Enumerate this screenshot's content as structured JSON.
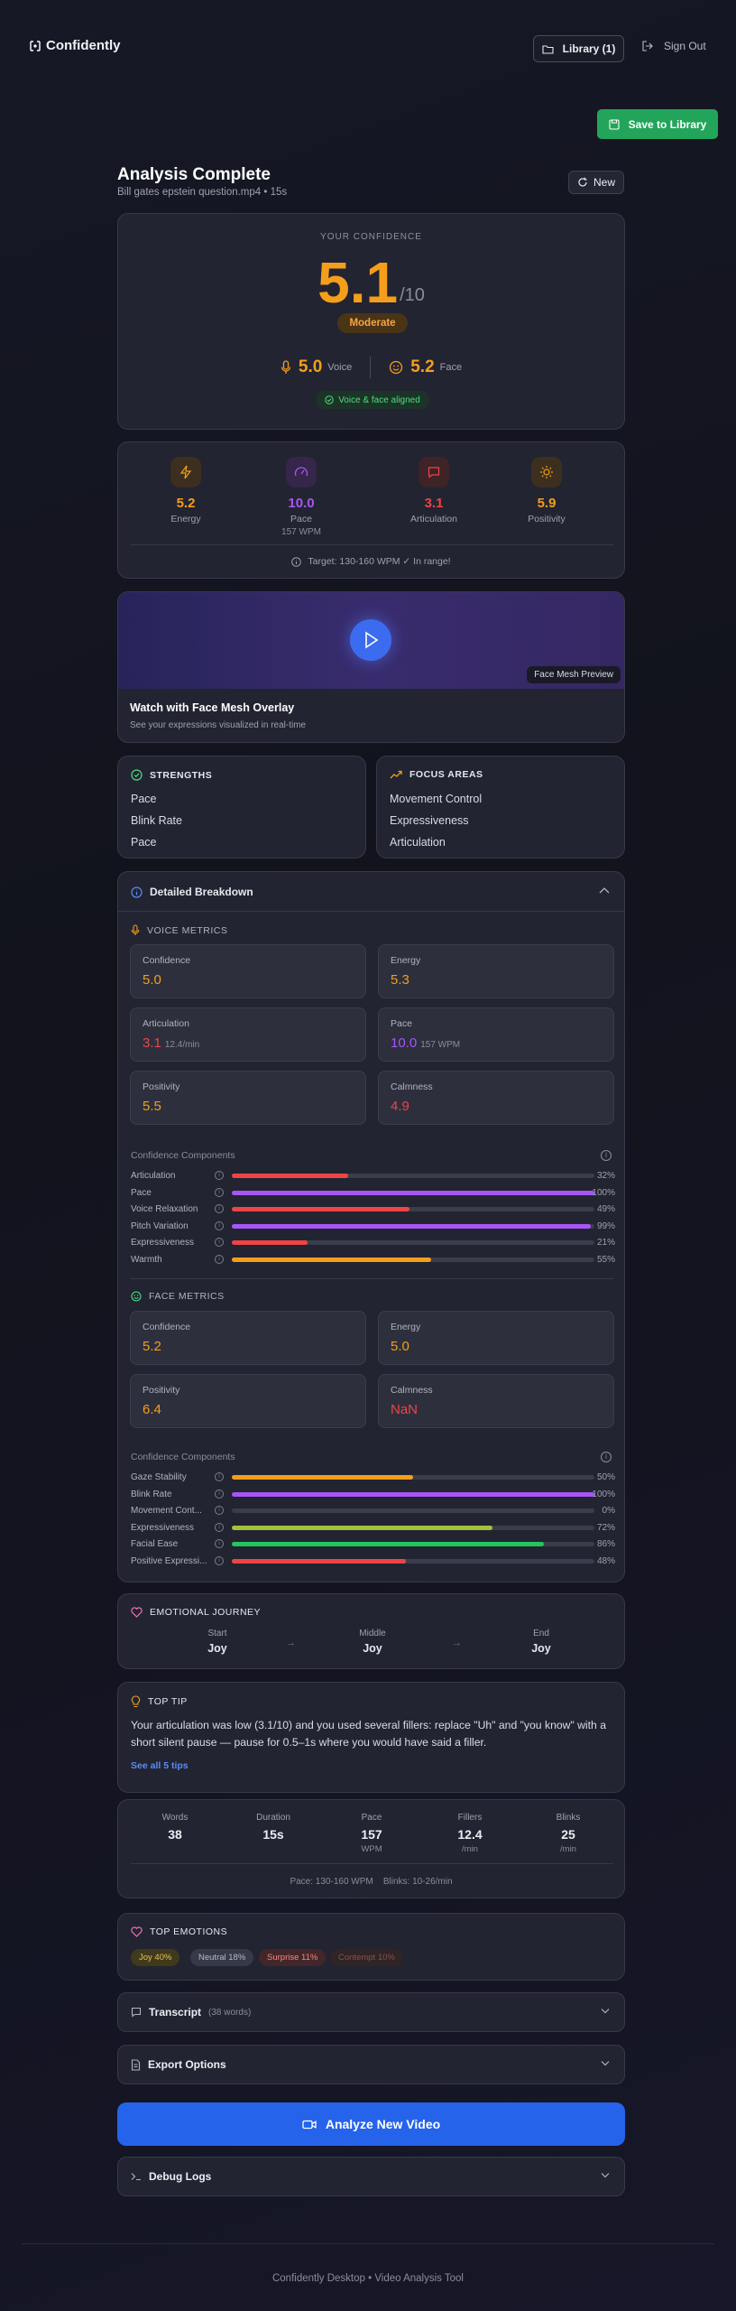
{
  "app": {
    "name": "Confidently",
    "library_label": "Library (1)",
    "signout_label": "Sign Out",
    "save_label": "Save to Library",
    "new_label": "New"
  },
  "header": {
    "title": "Analysis Complete",
    "subtitle": "Bill gates epstein question.mp4 • 15s"
  },
  "confidence": {
    "heading": "YOUR CONFIDENCE",
    "score": "5.1",
    "out_of": "/10",
    "level": "Moderate",
    "voice_value": "5.0",
    "voice_label": "Voice",
    "face_value": "5.2",
    "face_label": "Face",
    "aligned": "Voice & face aligned"
  },
  "metrics": [
    {
      "value": "5.2",
      "label": "Energy",
      "sub": "",
      "color": "#f59e1b",
      "icon": "lightning-icon"
    },
    {
      "value": "10.0",
      "label": "Pace",
      "sub": "157 WPM",
      "color": "#a855f7",
      "icon": "speedometer-icon"
    },
    {
      "value": "3.1",
      "label": "Articulation",
      "sub": "",
      "color": "#ef4444",
      "icon": "chat-icon"
    },
    {
      "value": "5.9",
      "label": "Positivity",
      "sub": "",
      "color": "#f59e1b",
      "icon": "sun-icon"
    }
  ],
  "target_note": "Target: 130-160 WPM ✓ In range!",
  "video": {
    "badge": "Face Mesh Preview",
    "title": "Watch with Face Mesh Overlay",
    "desc": "See your expressions visualized in real-time"
  },
  "strengths": {
    "heading": "STRENGTHS",
    "items": [
      "Pace",
      "Blink Rate",
      "Pace"
    ]
  },
  "focus": {
    "heading": "FOCUS AREAS",
    "items": [
      "Movement Control",
      "Expressiveness",
      "Articulation"
    ]
  },
  "breakdown": {
    "heading": "Detailed Breakdown",
    "voice_heading": "VOICE METRICS",
    "voice_boxes": [
      {
        "label": "Confidence",
        "value": "5.0",
        "unit": "",
        "color": "#f59e1b"
      },
      {
        "label": "Energy",
        "value": "5.3",
        "unit": "",
        "color": "#f59e1b"
      },
      {
        "label": "Articulation",
        "value": "3.1",
        "unit": "12.4/min",
        "color": "#ef4444"
      },
      {
        "label": "Pace",
        "value": "10.0",
        "unit": "157 WPM",
        "color": "#a855f7"
      },
      {
        "label": "Positivity",
        "value": "5.5",
        "unit": "",
        "color": "#f59e1b"
      },
      {
        "label": "Calmness",
        "value": "4.9",
        "unit": "",
        "color": "#ef4444"
      }
    ],
    "voice_components_heading": "Confidence Components",
    "voice_components": [
      {
        "label": "Articulation",
        "pct": "32%",
        "value": 32,
        "color": "#ef4444"
      },
      {
        "label": "Pace",
        "pct": "100%",
        "value": 100,
        "color": "#a855f7"
      },
      {
        "label": "Voice Relaxation",
        "pct": "49%",
        "value": 49,
        "color": "#ef4444"
      },
      {
        "label": "Pitch Variation",
        "pct": "99%",
        "value": 99,
        "color": "#a855f7"
      },
      {
        "label": "Expressiveness",
        "pct": "21%",
        "value": 21,
        "color": "#ef4444"
      },
      {
        "label": "Warmth",
        "pct": "55%",
        "value": 55,
        "color": "#f59e1b"
      }
    ],
    "face_heading": "FACE METRICS",
    "face_boxes": [
      {
        "label": "Confidence",
        "value": "5.2",
        "unit": "",
        "color": "#f59e1b"
      },
      {
        "label": "Energy",
        "value": "5.0",
        "unit": "",
        "color": "#f59e1b"
      },
      {
        "label": "Positivity",
        "value": "6.4",
        "unit": "",
        "color": "#f59e1b"
      },
      {
        "label": "Calmness",
        "value": "NaN",
        "unit": "",
        "color": "#ef4444"
      }
    ],
    "face_components_heading": "Confidence Components",
    "face_components": [
      {
        "label": "Gaze Stability",
        "pct": "50%",
        "value": 50,
        "color": "#f59e1b"
      },
      {
        "label": "Blink Rate",
        "pct": "100%",
        "value": 100,
        "color": "#a855f7"
      },
      {
        "label": "Movement Cont...",
        "pct": "0%",
        "value": 0,
        "color": "#ef4444"
      },
      {
        "label": "Expressiveness",
        "pct": "72%",
        "value": 72,
        "color": "#a3c23a"
      },
      {
        "label": "Facial Ease",
        "pct": "86%",
        "value": 86,
        "color": "#22c55e"
      },
      {
        "label": "Positive Expressi...",
        "pct": "48%",
        "value": 48,
        "color": "#ef4444"
      }
    ]
  },
  "journey": {
    "heading": "EMOTIONAL JOURNEY",
    "start_label": "Start",
    "start": "Joy",
    "middle_label": "Middle",
    "middle": "Joy",
    "end_label": "End",
    "end": "Joy",
    "arrow": "→"
  },
  "tip": {
    "heading": "TOP TIP",
    "text": "Your articulation was low (3.1/10) and you used several fillers: replace \"Uh\" and \"you know\" with a short silent pause — pause for 0.5–1s where you would have said a filler.",
    "link": "See all 5 tips"
  },
  "stats": [
    {
      "label": "Words",
      "value": "38",
      "unit": ""
    },
    {
      "label": "Duration",
      "value": "15s",
      "unit": ""
    },
    {
      "label": "Pace",
      "value": "157",
      "unit": "WPM"
    },
    {
      "label": "Fillers",
      "value": "12.4",
      "unit": "/min"
    },
    {
      "label": "Blinks",
      "value": "25",
      "unit": "/min"
    }
  ],
  "stats_note": "Pace: 130-160 WPM    Blinks: 10-26/min",
  "emotions": {
    "heading": "TOP EMOTIONS",
    "chips": [
      "Joy 40%",
      "Neutral 18%",
      "Surprise 11%",
      "Contempt 10%"
    ]
  },
  "transcript": {
    "label": "Transcript",
    "count": "(38 words)"
  },
  "export_label": "Export Options",
  "analyze_label": "Analyze New Video",
  "debug_label": "Debug Logs",
  "footer": "Confidently Desktop • Video Analysis Tool"
}
